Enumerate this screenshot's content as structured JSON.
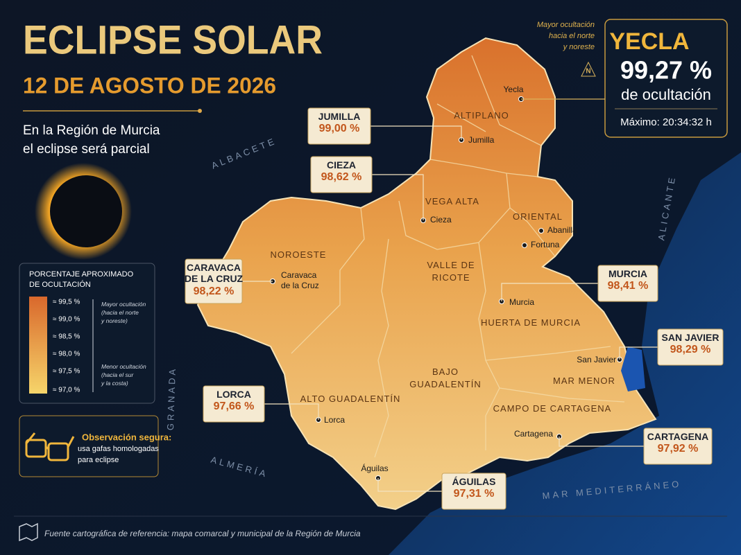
{
  "header": {
    "title": "ECLIPSE SOLAR",
    "date": "12 DE AGOSTO DE 2026",
    "subtitle": [
      "En la Región de Murcia",
      "el eclipse será parcial"
    ]
  },
  "note": [
    "Mayor ocultación",
    "hacia el norte",
    "y noreste"
  ],
  "compass": "N",
  "highlight": {
    "name": "YECLA",
    "value": "99,27 %",
    "label": "de ocultación",
    "maximum": "Máximo: 20:34:32 h"
  },
  "legend": {
    "title": [
      "PORCENTAJE APROXIMADO",
      "DE OCULTACIÓN"
    ],
    "levels": [
      "≈ 99,5 %",
      "≈ 99,0 %",
      "≈ 98,5 %",
      "≈ 98,0 %",
      "≈ 97,5 %",
      "≈ 97,0 %"
    ],
    "high_note": [
      "Mayor ocultación",
      "(hacia el norte",
      "y noreste)"
    ],
    "low_note": [
      "Menor ocultación",
      "(hacia el sur",
      "y la costa)"
    ]
  },
  "safety": {
    "title": "Observación segura:",
    "text": [
      "usa gafas homologadas",
      "para eclipse"
    ]
  },
  "regions": [
    [
      "ALTIPLANO"
    ],
    [
      "VEGA ALTA"
    ],
    [
      "ORIENTAL"
    ],
    [
      "NOROESTE"
    ],
    [
      "VALLE DE",
      "RICOTE"
    ],
    [
      "HUERTA DE MURCIA"
    ],
    [
      "ALTO GUADALENTÍN"
    ],
    [
      "BAJO",
      "GUADALENTÍN"
    ],
    [
      "MAR MENOR"
    ],
    [
      "CAMPO DE CARTAGENA"
    ]
  ],
  "neighbors": [
    "ALBACETE",
    "ALICANTE",
    "GRANADA",
    "ALMERÍA",
    "MAR MEDITERRÁNEO"
  ],
  "towns": [
    [
      "Yecla"
    ],
    [
      "Jumilla"
    ],
    [
      "Cieza"
    ],
    [
      "Abanilla"
    ],
    [
      "Fortuna"
    ],
    [
      "Caravaca",
      "de la Cruz"
    ],
    [
      "Murcia"
    ],
    [
      "San Javier"
    ],
    [
      "Cartagena"
    ],
    [
      "Lorca"
    ],
    [
      "Águilas"
    ]
  ],
  "callouts": [
    {
      "name": [
        "JUMILLA"
      ],
      "value": "99,00 %"
    },
    {
      "name": [
        "CIEZA"
      ],
      "value": "98,62 %"
    },
    {
      "name": [
        "CARAVACA",
        "DE LA CRUZ"
      ],
      "value": "98,22 %"
    },
    {
      "name": [
        "MURCIA"
      ],
      "value": "98,41 %"
    },
    {
      "name": [
        "SAN JAVIER"
      ],
      "value": "98,29 %"
    },
    {
      "name": [
        "CARTAGENA"
      ],
      "value": "97,92 %"
    },
    {
      "name": [
        "LORCA"
      ],
      "value": "97,66 %"
    },
    {
      "name": [
        "ÁGUILAS"
      ],
      "value": "97,31 %"
    }
  ],
  "footer": "Fuente cartográfica de referencia: mapa comarcal y municipal de la Región de Murcia"
}
